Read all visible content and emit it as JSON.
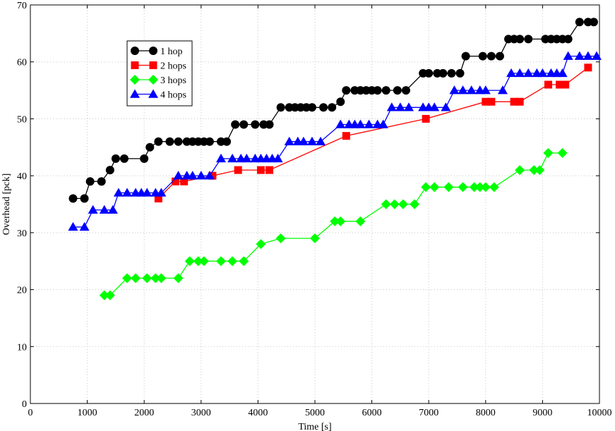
{
  "chart_data": {
    "type": "line",
    "title": "",
    "xlabel": "Time [s]",
    "ylabel": "Overhead [pck]",
    "xlim": [
      0,
      10000
    ],
    "ylim": [
      0,
      70
    ],
    "xticks": [
      0,
      1000,
      2000,
      3000,
      4000,
      5000,
      6000,
      7000,
      8000,
      9000,
      10000
    ],
    "yticks": [
      0,
      10,
      20,
      30,
      40,
      50,
      60,
      70
    ],
    "grid": true,
    "legend_position": "upper-left",
    "series": [
      {
        "name": "1 hop",
        "color": "#000000",
        "marker": "circle",
        "points": [
          [
            750,
            36
          ],
          [
            950,
            36
          ],
          [
            1050,
            39
          ],
          [
            1250,
            39
          ],
          [
            1400,
            41
          ],
          [
            1500,
            43
          ],
          [
            1650,
            43
          ],
          [
            2000,
            43
          ],
          [
            2100,
            45
          ],
          [
            2250,
            46
          ],
          [
            2450,
            46
          ],
          [
            2600,
            46
          ],
          [
            2750,
            46
          ],
          [
            2850,
            46
          ],
          [
            2950,
            46
          ],
          [
            3050,
            46
          ],
          [
            3150,
            46
          ],
          [
            3350,
            46
          ],
          [
            3450,
            46
          ],
          [
            3600,
            49
          ],
          [
            3750,
            49
          ],
          [
            3950,
            49
          ],
          [
            4100,
            49
          ],
          [
            4200,
            49
          ],
          [
            4400,
            52
          ],
          [
            4550,
            52
          ],
          [
            4650,
            52
          ],
          [
            4750,
            52
          ],
          [
            4850,
            52
          ],
          [
            4950,
            52
          ],
          [
            5150,
            52
          ],
          [
            5300,
            52
          ],
          [
            5450,
            53
          ],
          [
            5550,
            55
          ],
          [
            5700,
            55
          ],
          [
            5800,
            55
          ],
          [
            5900,
            55
          ],
          [
            6000,
            55
          ],
          [
            6100,
            55
          ],
          [
            6250,
            55
          ],
          [
            6450,
            55
          ],
          [
            6600,
            55
          ],
          [
            6900,
            58
          ],
          [
            7000,
            58
          ],
          [
            7150,
            58
          ],
          [
            7250,
            58
          ],
          [
            7400,
            58
          ],
          [
            7550,
            58
          ],
          [
            7650,
            61
          ],
          [
            7950,
            61
          ],
          [
            8100,
            61
          ],
          [
            8250,
            61
          ],
          [
            8400,
            64
          ],
          [
            8500,
            64
          ],
          [
            8600,
            64
          ],
          [
            8750,
            64
          ],
          [
            9050,
            64
          ],
          [
            9150,
            64
          ],
          [
            9250,
            64
          ],
          [
            9350,
            64
          ],
          [
            9450,
            64
          ],
          [
            9650,
            67
          ],
          [
            9800,
            67
          ],
          [
            9900,
            67
          ]
        ]
      },
      {
        "name": "2 hops",
        "color": "#ff0000",
        "marker": "square",
        "points": [
          [
            2250,
            36
          ],
          [
            2550,
            39
          ],
          [
            2700,
            39
          ],
          [
            3200,
            40
          ],
          [
            3650,
            41
          ],
          [
            4050,
            41
          ],
          [
            4200,
            41
          ],
          [
            5550,
            47
          ],
          [
            6950,
            50
          ],
          [
            8000,
            53
          ],
          [
            8100,
            53
          ],
          [
            8500,
            53
          ],
          [
            8600,
            53
          ],
          [
            9100,
            56
          ],
          [
            9300,
            56
          ],
          [
            9400,
            56
          ],
          [
            9800,
            59
          ]
        ]
      },
      {
        "name": "3 hops",
        "color": "#00ff00",
        "marker": "diamond",
        "points": [
          [
            1300,
            19
          ],
          [
            1400,
            19
          ],
          [
            1700,
            22
          ],
          [
            1850,
            22
          ],
          [
            2050,
            22
          ],
          [
            2200,
            22
          ],
          [
            2300,
            22
          ],
          [
            2600,
            22
          ],
          [
            2800,
            25
          ],
          [
            2950,
            25
          ],
          [
            3050,
            25
          ],
          [
            3350,
            25
          ],
          [
            3550,
            25
          ],
          [
            3750,
            25
          ],
          [
            4050,
            28
          ],
          [
            4400,
            29
          ],
          [
            5000,
            29
          ],
          [
            5350,
            32
          ],
          [
            5450,
            32
          ],
          [
            5800,
            32
          ],
          [
            6250,
            35
          ],
          [
            6400,
            35
          ],
          [
            6550,
            35
          ],
          [
            6750,
            35
          ],
          [
            6950,
            38
          ],
          [
            7100,
            38
          ],
          [
            7350,
            38
          ],
          [
            7600,
            38
          ],
          [
            7800,
            38
          ],
          [
            7900,
            38
          ],
          [
            8000,
            38
          ],
          [
            8150,
            38
          ],
          [
            8600,
            41
          ],
          [
            8850,
            41
          ],
          [
            8950,
            41
          ],
          [
            9100,
            44
          ],
          [
            9350,
            44
          ]
        ]
      },
      {
        "name": "4 hops",
        "color": "#0000ff",
        "marker": "triangle",
        "points": [
          [
            750,
            31
          ],
          [
            950,
            31
          ],
          [
            1100,
            34
          ],
          [
            1300,
            34
          ],
          [
            1450,
            34
          ],
          [
            1550,
            37
          ],
          [
            1700,
            37
          ],
          [
            1850,
            37
          ],
          [
            1950,
            37
          ],
          [
            2050,
            37
          ],
          [
            2200,
            37
          ],
          [
            2300,
            37
          ],
          [
            2600,
            40
          ],
          [
            2750,
            40
          ],
          [
            2850,
            40
          ],
          [
            3000,
            40
          ],
          [
            3150,
            40
          ],
          [
            3350,
            43
          ],
          [
            3550,
            43
          ],
          [
            3700,
            43
          ],
          [
            3800,
            43
          ],
          [
            3950,
            43
          ],
          [
            4050,
            43
          ],
          [
            4150,
            43
          ],
          [
            4250,
            43
          ],
          [
            4350,
            43
          ],
          [
            4550,
            46
          ],
          [
            4700,
            46
          ],
          [
            4800,
            46
          ],
          [
            4950,
            46
          ],
          [
            5100,
            46
          ],
          [
            5450,
            49
          ],
          [
            5600,
            49
          ],
          [
            5700,
            49
          ],
          [
            5800,
            49
          ],
          [
            5950,
            49
          ],
          [
            6100,
            49
          ],
          [
            6200,
            49
          ],
          [
            6350,
            52
          ],
          [
            6500,
            52
          ],
          [
            6650,
            52
          ],
          [
            6900,
            52
          ],
          [
            7000,
            52
          ],
          [
            7100,
            52
          ],
          [
            7300,
            52
          ],
          [
            7450,
            55
          ],
          [
            7600,
            55
          ],
          [
            7750,
            55
          ],
          [
            7900,
            55
          ],
          [
            8000,
            55
          ],
          [
            8300,
            55
          ],
          [
            8450,
            58
          ],
          [
            8600,
            58
          ],
          [
            8750,
            58
          ],
          [
            8900,
            58
          ],
          [
            9000,
            58
          ],
          [
            9150,
            58
          ],
          [
            9250,
            58
          ],
          [
            9350,
            58
          ],
          [
            9450,
            61
          ],
          [
            9650,
            61
          ],
          [
            9800,
            61
          ],
          [
            9950,
            61
          ]
        ]
      }
    ]
  }
}
